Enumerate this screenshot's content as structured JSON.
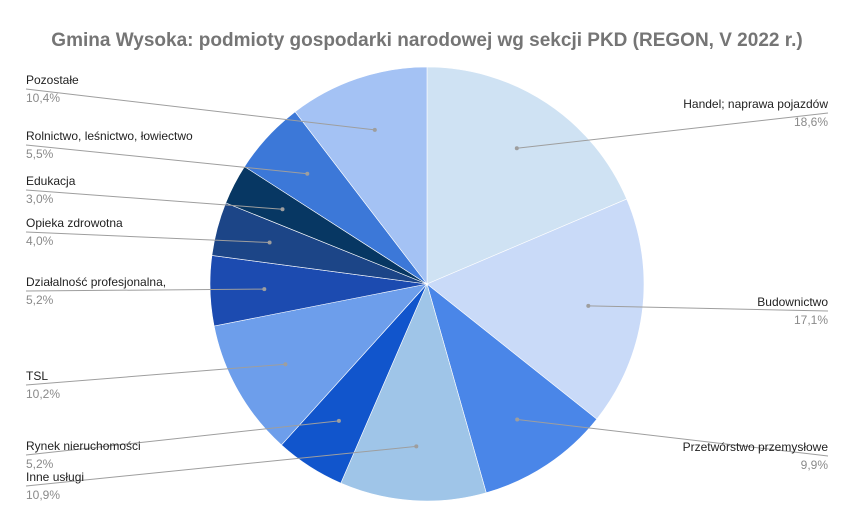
{
  "chart_data": {
    "type": "pie",
    "title": "Gmina Wysoka: podmioty gospodarki narodowej wg sekcji PKD (REGON, V 2022 r.)",
    "slices": [
      {
        "label": "Handel; naprawa pojazdów",
        "value": 18.6,
        "value_label": "18,6%",
        "color": "#cfe2f3"
      },
      {
        "label": "Budownictwo",
        "value": 17.1,
        "value_label": "17,1%",
        "color": "#c9daf8"
      },
      {
        "label": "Przetwórstwo przemysłowe",
        "value": 9.9,
        "value_label": "9,9%",
        "color": "#4a86e8"
      },
      {
        "label": "Inne usługi",
        "value": 10.9,
        "value_label": "10,9%",
        "color": "#9fc5e8"
      },
      {
        "label": "Rynek nieruchomości",
        "value": 5.2,
        "value_label": "5,2%",
        "color": "#1155cc"
      },
      {
        "label": "TSL",
        "value": 10.2,
        "value_label": "10,2%",
        "color": "#6d9eeb"
      },
      {
        "label": "Działalność profesjonalna,",
        "value": 5.2,
        "value_label": "5,2%",
        "color": "#1c4bb0"
      },
      {
        "label": "Opieka zdrowotna",
        "value": 4.0,
        "value_label": "4,0%",
        "color": "#1c4587"
      },
      {
        "label": "Edukacja",
        "value": 3.0,
        "value_label": "3,0%",
        "color": "#073763"
      },
      {
        "label": "Rolnictwo, leśnictwo, łowiectwo",
        "value": 5.5,
        "value_label": "5,5%",
        "color": "#3c78d8"
      },
      {
        "label": "Pozostałe",
        "value": 10.4,
        "value_label": "10,4%",
        "color": "#a4c2f4"
      }
    ],
    "legend": "none",
    "label_placement": "outside with leader lines"
  }
}
